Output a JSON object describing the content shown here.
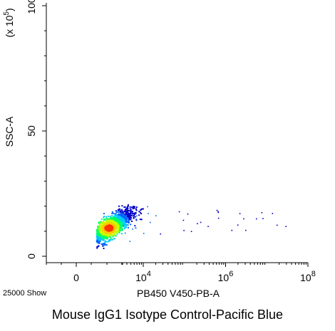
{
  "chart_data": {
    "type": "scatter",
    "title": "",
    "xlabel": "PB450 V450-PB-A",
    "ylabel": "SSC-A",
    "ylabel_scale": "(x 10",
    "ylabel_scale_exp": "5",
    "ylabel_scale_close": ")",
    "x_scale": "biexponential",
    "y_scale": "linear",
    "x_ticks": [
      {
        "value": 0,
        "base": "0",
        "exp": ""
      },
      {
        "value": 10000,
        "base": "10",
        "exp": "4"
      },
      {
        "value": 1000000,
        "base": "10",
        "exp": "6"
      },
      {
        "value": 100000000,
        "base": "10",
        "exp": "8"
      }
    ],
    "y_ticks": [
      {
        "value": 0,
        "label": "0"
      },
      {
        "value": 50,
        "label": "50"
      },
      {
        "value": 100,
        "label": "100"
      }
    ],
    "ylim": [
      0,
      100
    ],
    "grid": false,
    "density_colors": [
      "#0000c8",
      "#0064ff",
      "#00c8ff",
      "#00ff64",
      "#c8ff00",
      "#ffc800",
      "#ff3200"
    ],
    "populations": [
      {
        "name": "main",
        "x_center_log": 3.15,
        "x_spread_log": 0.28,
        "y_center": 11.5,
        "y_spread": 3.6,
        "correlation": 0.8,
        "events": 1800
      },
      {
        "name": "sparse",
        "x_range_log": [
          3.5,
          7.6
        ],
        "y_range": [
          5,
          20
        ],
        "events": 38
      }
    ],
    "event_count": "25000 Show",
    "caption": "Mouse IgG1 Isotype Control-Pacific Blue"
  }
}
